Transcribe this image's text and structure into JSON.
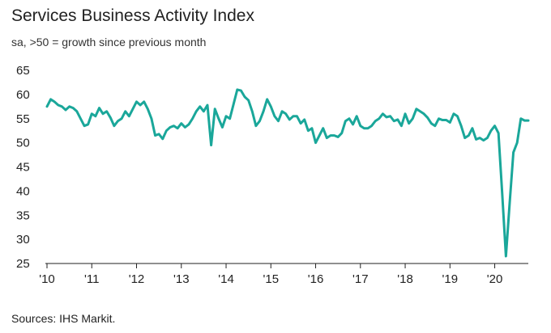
{
  "chart_data": {
    "type": "line",
    "title": "Services Business Activity Index",
    "subtitle": "sa, >50 = growth since previous month",
    "xlabel": "",
    "ylabel": "",
    "ylim": [
      25,
      65
    ],
    "yticks": [
      25,
      30,
      35,
      40,
      45,
      50,
      55,
      60,
      65
    ],
    "xlim": [
      "2010-01",
      "2020-10"
    ],
    "xticks": [
      {
        "label": "'10",
        "date": "2010-01"
      },
      {
        "label": "'11",
        "date": "2011-01"
      },
      {
        "label": "'12",
        "date": "2012-01"
      },
      {
        "label": "'13",
        "date": "2013-01"
      },
      {
        "label": "'14",
        "date": "2014-01"
      },
      {
        "label": "'15",
        "date": "2015-01"
      },
      {
        "label": "'16",
        "date": "2016-01"
      },
      {
        "label": "'17",
        "date": "2017-01"
      },
      {
        "label": "'18",
        "date": "2018-01"
      },
      {
        "label": "'19",
        "date": "2019-01"
      },
      {
        "label": "'20",
        "date": "2020-01"
      }
    ],
    "grid": false,
    "line_color": "#1aa79a",
    "series": [
      {
        "x": [
          "2010-01",
          "2010-02",
          "2010-03",
          "2010-04",
          "2010-05",
          "2010-06",
          "2010-07",
          "2010-08",
          "2010-09",
          "2010-10",
          "2010-11",
          "2010-12",
          "2011-01",
          "2011-02",
          "2011-03",
          "2011-04",
          "2011-05",
          "2011-06",
          "2011-07",
          "2011-08",
          "2011-09",
          "2011-10",
          "2011-11",
          "2011-12",
          "2012-01",
          "2012-02",
          "2012-03",
          "2012-04",
          "2012-05",
          "2012-06",
          "2012-07",
          "2012-08",
          "2012-09",
          "2012-10",
          "2012-11",
          "2012-12",
          "2013-01",
          "2013-02",
          "2013-03",
          "2013-04",
          "2013-05",
          "2013-06",
          "2013-07",
          "2013-08",
          "2013-09",
          "2013-10",
          "2013-11",
          "2013-12",
          "2014-01",
          "2014-02",
          "2014-03",
          "2014-04",
          "2014-05",
          "2014-06",
          "2014-07",
          "2014-08",
          "2014-09",
          "2014-10",
          "2014-11",
          "2014-12",
          "2015-01",
          "2015-02",
          "2015-03",
          "2015-04",
          "2015-05",
          "2015-06",
          "2015-07",
          "2015-08",
          "2015-09",
          "2015-10",
          "2015-11",
          "2015-12",
          "2016-01",
          "2016-02",
          "2016-03",
          "2016-04",
          "2016-05",
          "2016-06",
          "2016-07",
          "2016-08",
          "2016-09",
          "2016-10",
          "2016-11",
          "2016-12",
          "2017-01",
          "2017-02",
          "2017-03",
          "2017-04",
          "2017-05",
          "2017-06",
          "2017-07",
          "2017-08",
          "2017-09",
          "2017-10",
          "2017-11",
          "2017-12",
          "2018-01",
          "2018-02",
          "2018-03",
          "2018-04",
          "2018-05",
          "2018-06",
          "2018-07",
          "2018-08",
          "2018-09",
          "2018-10",
          "2018-11",
          "2018-12",
          "2019-01",
          "2019-02",
          "2019-03",
          "2019-04",
          "2019-05",
          "2019-06",
          "2019-07",
          "2019-08",
          "2019-09",
          "2019-10",
          "2019-11",
          "2019-12",
          "2020-01",
          "2020-02",
          "2020-03",
          "2020-04",
          "2020-05",
          "2020-06",
          "2020-07",
          "2020-08",
          "2020-09",
          "2020-10"
        ],
        "values": [
          57.5,
          59.0,
          58.5,
          57.8,
          57.5,
          56.8,
          57.5,
          57.2,
          56.5,
          55.0,
          53.5,
          53.8,
          56.0,
          55.5,
          57.2,
          56.0,
          56.5,
          55.2,
          53.5,
          54.5,
          55.0,
          56.5,
          55.5,
          57.0,
          58.5,
          57.8,
          58.5,
          57.0,
          55.0,
          51.5,
          51.8,
          50.8,
          52.5,
          53.2,
          53.5,
          53.0,
          54.0,
          53.2,
          53.8,
          55.0,
          56.5,
          57.5,
          56.5,
          57.8,
          49.5,
          57.0,
          55.0,
          53.2,
          55.5,
          55.0,
          58.0,
          61.0,
          60.8,
          59.5,
          58.8,
          56.5,
          53.5,
          54.5,
          56.5,
          59.0,
          57.5,
          55.5,
          54.5,
          56.5,
          56.0,
          54.8,
          55.5,
          55.5,
          54.0,
          54.8,
          52.5,
          53.0,
          50.0,
          51.5,
          53.0,
          51.0,
          51.5,
          51.5,
          51.2,
          52.0,
          54.5,
          55.0,
          53.8,
          55.5,
          53.5,
          53.0,
          53.0,
          53.5,
          54.5,
          55.0,
          56.0,
          55.3,
          55.5,
          54.5,
          54.8,
          53.5,
          56.0,
          54.0,
          55.0,
          57.0,
          56.5,
          56.0,
          55.2,
          54.0,
          53.5,
          55.0,
          54.7,
          54.7,
          54.2,
          56.0,
          55.5,
          53.5,
          51.0,
          51.5,
          53.0,
          50.7,
          51.0,
          50.5,
          51.0,
          52.5,
          53.5,
          52.0,
          39.5,
          26.5,
          37.5,
          48.0,
          50.0,
          55.0,
          54.6,
          54.6
        ]
      }
    ]
  },
  "source_note": "Sources: IHS Markit."
}
